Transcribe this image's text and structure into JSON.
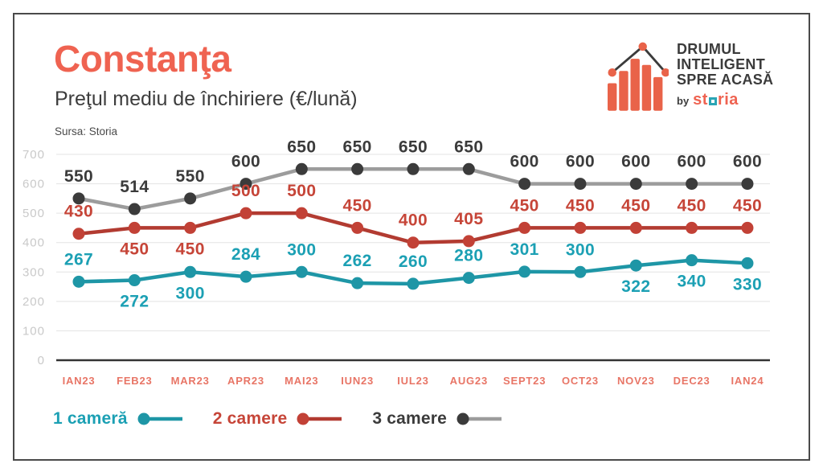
{
  "header": {
    "title": "Constanţa",
    "subtitle": "Preţul mediu de închiriere (€/lună)",
    "source": "Sursa: Storia"
  },
  "logo": {
    "line1": "DRUMUL",
    "line2": "INTELIGENT",
    "line3": "SPRE ACASĂ",
    "by": "by",
    "brand_pre": "st",
    "brand_post": "ria"
  },
  "colors": {
    "background": "#ffffff",
    "border": "#4a4a4a",
    "accent_coral": "#ef6351",
    "dark": "#3b3b3b",
    "grid": "#e3e3e3",
    "axis": "#333333",
    "y_label": "#c9c9c9",
    "x_label": "#e87566",
    "teal": "#1e96a6",
    "red_line": "#b23b31",
    "gray_line": "#9c9c9c"
  },
  "chart_data": {
    "type": "line",
    "title": "Constanţa",
    "subtitle": "Preţul mediu de închiriere (€/lună)",
    "source": "Sursa: Storia",
    "categories": [
      "IAN23",
      "FEB23",
      "MAR23",
      "APR23",
      "MAI23",
      "IUN23",
      "IUL23",
      "AUG23",
      "SEPT23",
      "OCT23",
      "NOV23",
      "DEC23",
      "IAN24"
    ],
    "y_ticks": [
      0,
      100,
      200,
      300,
      400,
      500,
      600,
      700
    ],
    "ylim": [
      0,
      700
    ],
    "grid": true,
    "legend_position": "bottom-left",
    "series": [
      {
        "name": "1 cameră",
        "values": [
          267,
          272,
          300,
          284,
          300,
          262,
          260,
          280,
          301,
          300,
          322,
          340,
          330
        ],
        "label_pos": [
          "above",
          "below",
          "below",
          "above",
          "above",
          "above",
          "above",
          "above",
          "above",
          "above",
          "below",
          "below",
          "below"
        ],
        "line_color": "#1e96a6",
        "dot_color": "#1e96a6",
        "label_color": "#1ca0b4"
      },
      {
        "name": "2 camere",
        "values": [
          430,
          450,
          450,
          500,
          500,
          450,
          400,
          405,
          450,
          450,
          450,
          450,
          450
        ],
        "label_pos": [
          "above",
          "below",
          "below",
          "above",
          "above",
          "above",
          "above",
          "above",
          "above",
          "above",
          "above",
          "above",
          "above"
        ],
        "line_color": "#b23b31",
        "dot_color": "#c24136",
        "label_color": "#c64538"
      },
      {
        "name": "3 camere",
        "values": [
          550,
          514,
          550,
          600,
          650,
          650,
          650,
          650,
          600,
          600,
          600,
          600,
          600
        ],
        "label_pos": [
          "above",
          "above",
          "above",
          "above",
          "above",
          "above",
          "above",
          "above",
          "above",
          "above",
          "above",
          "above",
          "above"
        ],
        "line_color": "#9c9c9c",
        "dot_color": "#3b3b3b",
        "label_color": "#3b3b3b"
      }
    ]
  }
}
